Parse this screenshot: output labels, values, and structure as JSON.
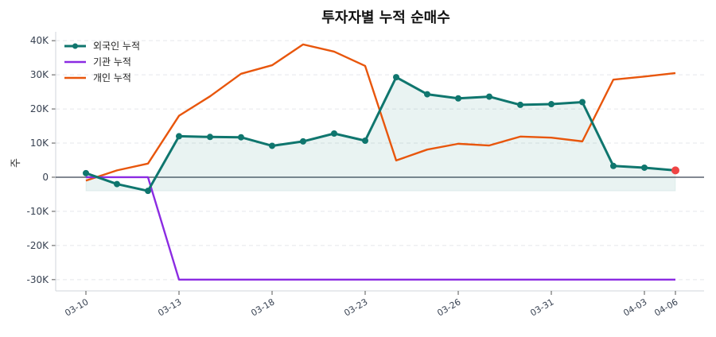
{
  "chart_data": {
    "type": "line",
    "title": "투자자별 누적 순매수",
    "xlabel": "",
    "ylabel": "주",
    "x": [
      "03-10",
      "03-11",
      "03-12",
      "03-13",
      "03-16",
      "03-17",
      "03-18",
      "03-19",
      "03-20",
      "03-23",
      "03-24",
      "03-25",
      "03-26",
      "03-27",
      "03-30",
      "03-31",
      "04-01",
      "04-02",
      "04-03",
      "04-06"
    ],
    "x_tick_labels": [
      "03-10",
      "03-13",
      "03-18",
      "03-23",
      "03-26",
      "03-31",
      "04-03",
      "04-06"
    ],
    "y_ticks": [
      -30000,
      -20000,
      -10000,
      0,
      10000,
      20000,
      30000,
      40000
    ],
    "y_tick_labels": [
      "-30K",
      "-20K",
      "-10K",
      "0",
      "10K",
      "20K",
      "30K",
      "40K"
    ],
    "ylim": [
      -33300,
      42600
    ],
    "grid": "horizontal dashed",
    "legend_position": "top-left",
    "series": [
      {
        "name": "외국인 누적",
        "color": "#0f766e",
        "markers": true,
        "fill": true,
        "values": [
          1200,
          -2000,
          -4000,
          12000,
          11800,
          11700,
          9200,
          10500,
          12800,
          10700,
          29300,
          24300,
          23100,
          23600,
          21200,
          21400,
          22000,
          3300,
          2800,
          2000
        ]
      },
      {
        "name": "기관 누적",
        "color": "#8b2be2",
        "markers": false,
        "values": [
          0,
          0,
          0,
          -30000,
          -30000,
          -30000,
          -30000,
          -30000,
          -30000,
          -30000,
          -30000,
          -30000,
          -30000,
          -30000,
          -30000,
          -30000,
          -30000,
          -30000,
          -30000,
          -30000
        ]
      },
      {
        "name": "개인 누적",
        "color": "#e8560c",
        "markers": false,
        "values": [
          -1000,
          2000,
          4000,
          18000,
          23700,
          30300,
          32800,
          38900,
          36800,
          32600,
          4900,
          8100,
          9800,
          9300,
          11900,
          11600,
          10500,
          28600,
          29500,
          30500
        ]
      }
    ],
    "last_point_highlight_color": "#ef4444"
  }
}
